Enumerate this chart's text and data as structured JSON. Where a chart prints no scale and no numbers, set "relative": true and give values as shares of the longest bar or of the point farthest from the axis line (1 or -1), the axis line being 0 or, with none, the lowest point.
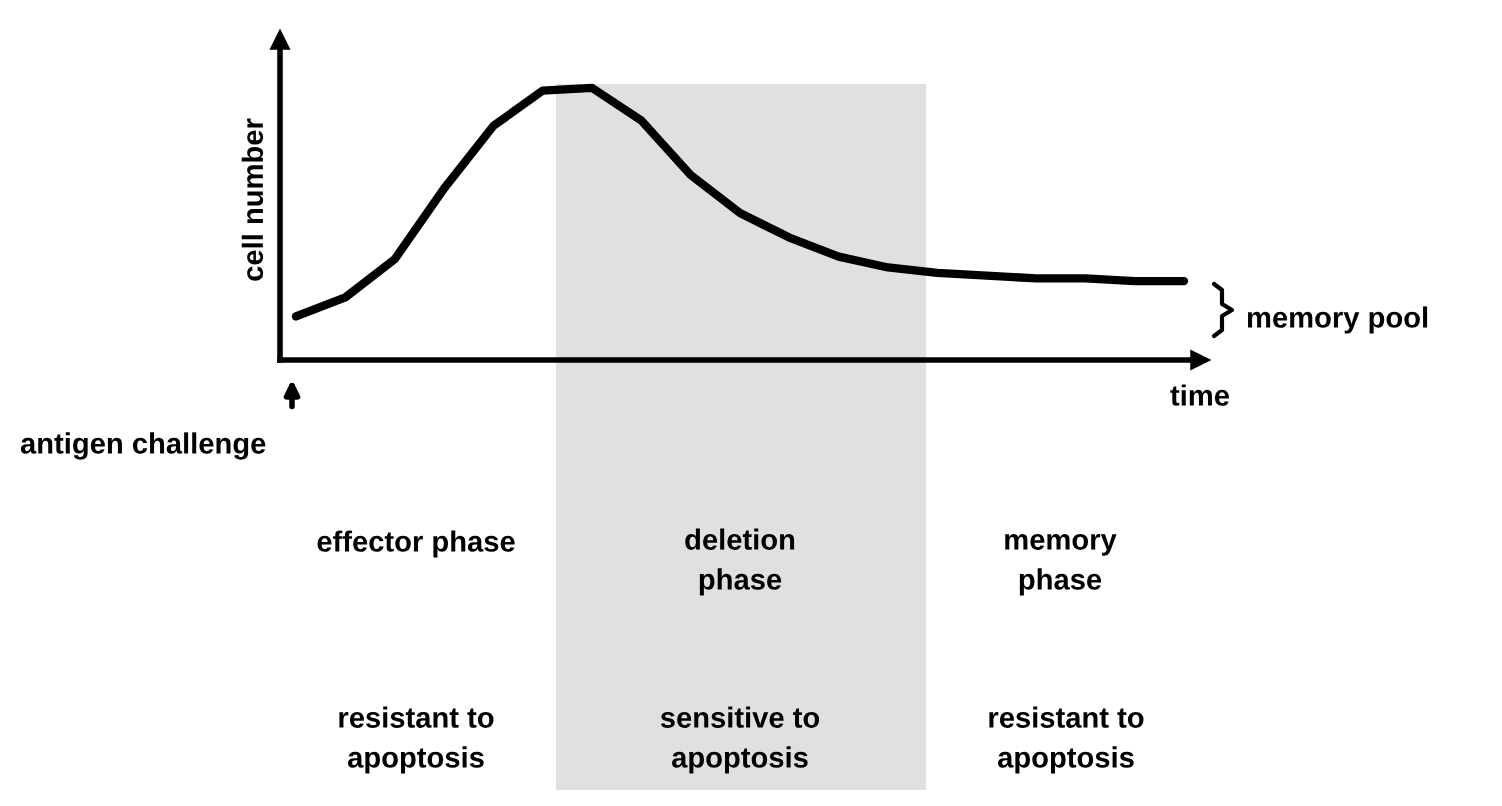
{
  "chart_data": {
    "type": "line",
    "relative": true,
    "ylabel": "cell number",
    "xlabel": "time",
    "categories": [
      null,
      null,
      null,
      null,
      null,
      null,
      null,
      null,
      null,
      null,
      null,
      null,
      null,
      null,
      null,
      null,
      null,
      null,
      null
    ],
    "series": [
      {
        "color": "#000000",
        "values": [
          0.16,
          0.23,
          0.37,
          0.63,
          0.86,
          0.99,
          1.0,
          0.88,
          0.68,
          0.54,
          0.45,
          0.38,
          0.34,
          0.32,
          0.31,
          0.3,
          0.3,
          0.29,
          0.29
        ]
      }
    ],
    "annotations": [
      "antigen challenge",
      "memory pool",
      "effector phase",
      "deletion\nphase",
      "memory\nphase",
      "resistant to\napoptosis",
      "sensitive to\napoptosis",
      "resistant to\napoptosis"
    ],
    "marker": "none",
    "line_style": "solid"
  }
}
